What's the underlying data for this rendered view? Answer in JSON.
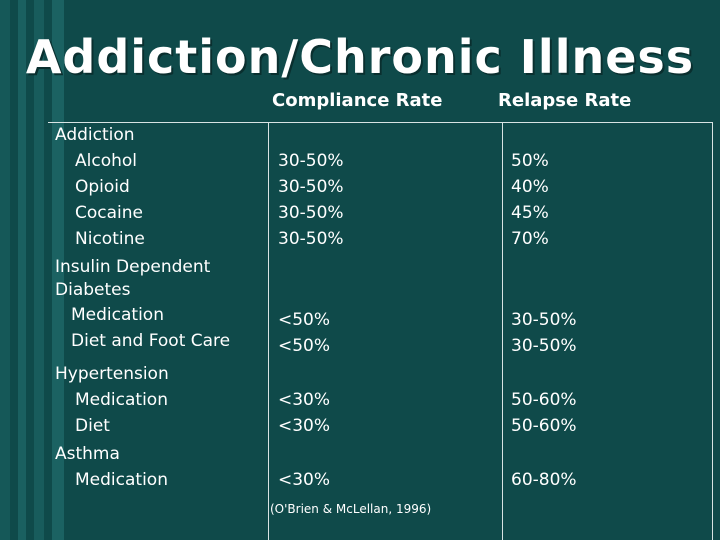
{
  "slide": {
    "title": "Addiction/Chronic Illness",
    "citation": "(O'Brien & McLellan, 1996)",
    "columns": {
      "compliance": "Compliance Rate",
      "relapse": "Relapse Rate"
    },
    "groups": [
      {
        "name": "Addiction",
        "rows": [
          {
            "label": "Alcohol",
            "compliance": "30-50%",
            "relapse": "50%"
          },
          {
            "label": "Opioid",
            "compliance": "30-50%",
            "relapse": "40%"
          },
          {
            "label": "Cocaine",
            "compliance": "30-50%",
            "relapse": "45%"
          },
          {
            "label": "Nicotine",
            "compliance": "30-50%",
            "relapse": "70%"
          }
        ]
      },
      {
        "name_line1": "Insulin Dependent",
        "name_line2": "Diabetes",
        "rows": [
          {
            "label": "Medication",
            "compliance": "<50%",
            "relapse": "30-50%"
          },
          {
            "label": "Diet and Foot Care",
            "compliance": "<50%",
            "relapse": "30-50%"
          }
        ]
      },
      {
        "name": "Hypertension",
        "rows": [
          {
            "label": "Medication",
            "compliance": "<30%",
            "relapse": "50-60%"
          },
          {
            "label": "Diet",
            "compliance": "<30%",
            "relapse": "50-60%"
          }
        ]
      },
      {
        "name": "Asthma",
        "rows": [
          {
            "label": "Medication",
            "compliance": "<30%",
            "relapse": "60-80%"
          }
        ]
      }
    ]
  }
}
